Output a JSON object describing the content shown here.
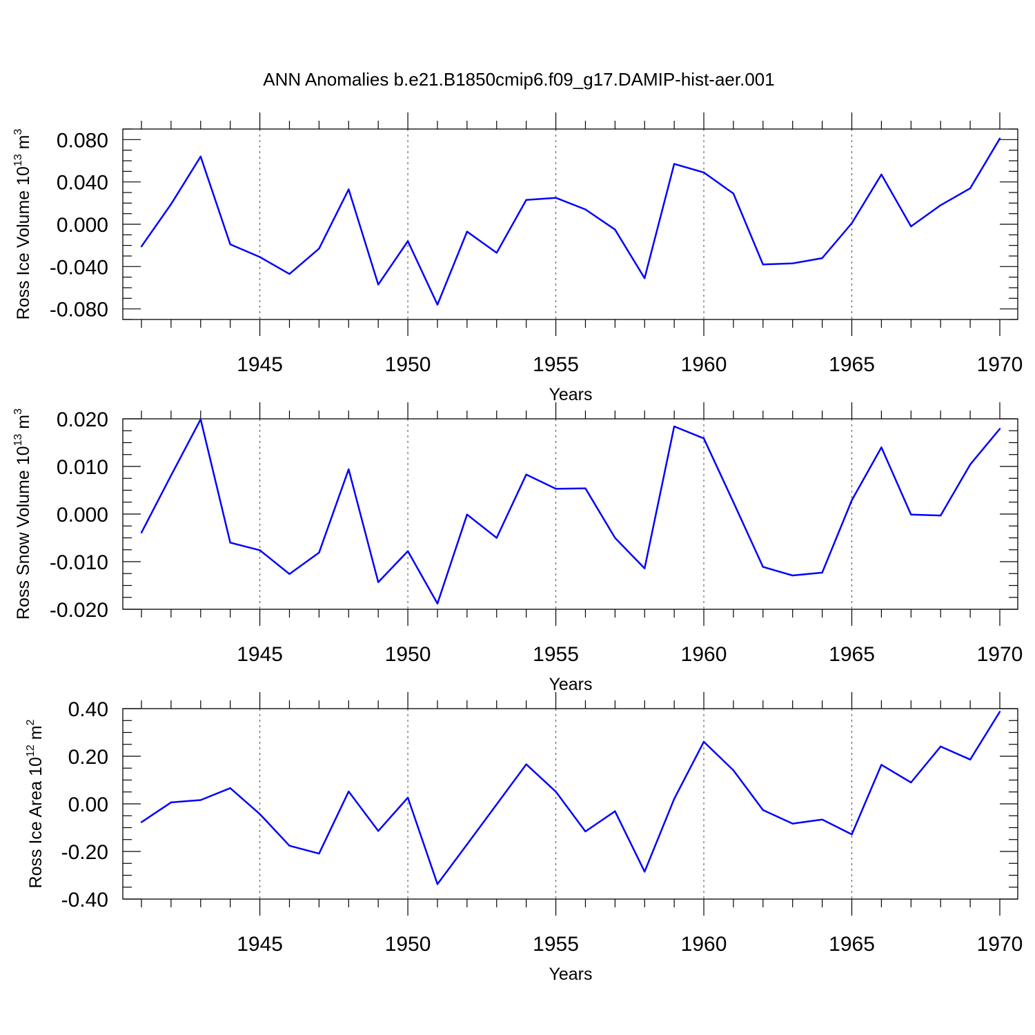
{
  "title": "ANN Anomalies b.e21.B1850cmip6.f09_g17.DAMIP-hist-aer.001",
  "line_color": "#0000ff",
  "chart_data": [
    {
      "type": "line",
      "ylabel": "Ross Ice Volume 10",
      "ylabel_sup": "13",
      "ylabel_unit": " m",
      "ylabel_unit_sup": "3",
      "xlabel": "Years",
      "xlim": [
        1941,
        1970
      ],
      "ylim": [
        -0.09,
        0.09
      ],
      "yticks": [
        -0.08,
        -0.04,
        0.0,
        0.04,
        0.08
      ],
      "ytick_labels": [
        "-0.080",
        "-0.040",
        "0.000",
        "0.040",
        "0.080"
      ],
      "yminor_step": 0.01,
      "xticks": [
        1945,
        1950,
        1955,
        1960,
        1965,
        1970
      ],
      "xtick_labels": [
        "1945",
        "1950",
        "1955",
        "1960",
        "1965",
        "1970"
      ],
      "x": [
        1941,
        1942,
        1943,
        1944,
        1945,
        1946,
        1947,
        1948,
        1949,
        1950,
        1951,
        1952,
        1953,
        1954,
        1955,
        1956,
        1957,
        1958,
        1959,
        1960,
        1961,
        1962,
        1963,
        1964,
        1965,
        1966,
        1967,
        1968,
        1969,
        1970
      ],
      "values": [
        -0.021,
        0.019,
        0.064,
        -0.019,
        -0.031,
        -0.047,
        -0.023,
        0.033,
        -0.057,
        -0.016,
        -0.076,
        -0.007,
        -0.027,
        0.023,
        0.025,
        0.014,
        -0.005,
        -0.051,
        0.057,
        0.049,
        0.029,
        -0.038,
        -0.037,
        -0.032,
        0.001,
        0.047,
        -0.002,
        0.018,
        0.034,
        0.081
      ]
    },
    {
      "type": "line",
      "ylabel": "Ross Snow Volume 10",
      "ylabel_sup": "13",
      "ylabel_unit": " m",
      "ylabel_unit_sup": "3",
      "xlabel": "Years",
      "xlim": [
        1941,
        1970
      ],
      "ylim": [
        -0.02,
        0.02
      ],
      "yticks": [
        -0.02,
        -0.01,
        0.0,
        0.01,
        0.02
      ],
      "ytick_labels": [
        "-0.020",
        "-0.010",
        "0.000",
        "0.010",
        "0.020"
      ],
      "yminor_step": 0.0025,
      "xticks": [
        1945,
        1950,
        1955,
        1960,
        1965,
        1970
      ],
      "xtick_labels": [
        "1945",
        "1950",
        "1955",
        "1960",
        "1965",
        "1970"
      ],
      "x": [
        1941,
        1942,
        1943,
        1944,
        1945,
        1946,
        1947,
        1948,
        1949,
        1950,
        1951,
        1952,
        1953,
        1954,
        1955,
        1956,
        1957,
        1958,
        1959,
        1960,
        1961,
        1962,
        1963,
        1964,
        1965,
        1966,
        1967,
        1968,
        1969,
        1970
      ],
      "values": [
        -0.0039,
        0.0081,
        0.0199,
        -0.006,
        -0.0076,
        -0.0126,
        -0.0081,
        0.0094,
        -0.0143,
        -0.0078,
        -0.0188,
        -0.0001,
        -0.005,
        0.0083,
        0.0053,
        0.0054,
        -0.005,
        -0.0114,
        0.0184,
        0.0159,
        0.0025,
        -0.0111,
        -0.0129,
        -0.0123,
        0.0029,
        0.014,
        -0.0001,
        -0.0003,
        0.0104,
        0.0179
      ]
    },
    {
      "type": "line",
      "ylabel": "Ross Ice Area 10",
      "ylabel_sup": "12",
      "ylabel_unit": " m",
      "ylabel_unit_sup": "2",
      "xlabel": "Years",
      "xlim": [
        1941,
        1970
      ],
      "ylim": [
        -0.4,
        0.4
      ],
      "yticks": [
        -0.4,
        -0.2,
        0.0,
        0.2,
        0.4
      ],
      "ytick_labels": [
        "-0.40",
        "-0.20",
        "0.00",
        "0.20",
        "0.40"
      ],
      "yminor_step": 0.05,
      "xticks": [
        1945,
        1950,
        1955,
        1960,
        1965,
        1970
      ],
      "xtick_labels": [
        "1945",
        "1950",
        "1955",
        "1960",
        "1965",
        "1970"
      ],
      "x": [
        1941,
        1942,
        1943,
        1944,
        1945,
        1946,
        1947,
        1948,
        1949,
        1950,
        1951,
        1952,
        1953,
        1954,
        1955,
        1956,
        1957,
        1958,
        1959,
        1960,
        1961,
        1962,
        1963,
        1964,
        1965,
        1966,
        1967,
        1968,
        1969,
        1970
      ],
      "values": [
        -0.077,
        0.006,
        0.016,
        0.066,
        -0.043,
        -0.176,
        -0.209,
        0.052,
        -0.114,
        0.026,
        -0.337,
        -0.17,
        -0.002,
        0.166,
        0.051,
        -0.116,
        -0.031,
        -0.285,
        0.021,
        0.261,
        0.141,
        -0.026,
        -0.083,
        -0.066,
        -0.128,
        0.164,
        0.09,
        0.241,
        0.186,
        0.387
      ]
    }
  ]
}
